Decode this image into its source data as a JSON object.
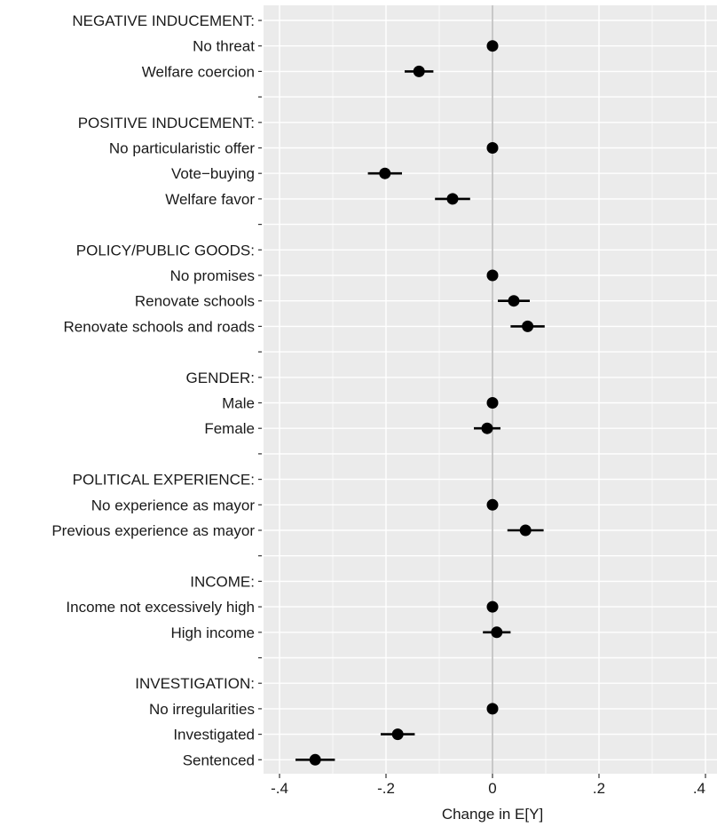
{
  "chart_data": {
    "type": "scatter",
    "subtype": "coefficient-plot",
    "title": "",
    "xlabel": "Change in E[Y]",
    "ylabel": "",
    "xlim": [
      -0.4,
      0.4
    ],
    "x_ticks": [
      -0.4,
      -0.2,
      0,
      0.2,
      0.4
    ],
    "x_tick_labels": [
      "-.4",
      "-.2",
      "0",
      ".2",
      ".4"
    ],
    "reference_line_x": 0,
    "grid": true,
    "legend": "none",
    "colors": {
      "panel": "#ebebeb",
      "grid": "#ffffff",
      "point": "#000000",
      "refline": "#bdbdbd"
    },
    "rows": [
      {
        "label": "NEGATIVE INDUCEMENT:",
        "header": true
      },
      {
        "label": "No threat",
        "estimate": 0.0,
        "lower": 0.0,
        "upper": 0.0
      },
      {
        "label": "Welfare coercion",
        "estimate": -0.138,
        "lower": -0.165,
        "upper": -0.111
      },
      {
        "label": "",
        "spacer": true
      },
      {
        "label": "POSITIVE INDUCEMENT:",
        "header": true
      },
      {
        "label": "No particularistic offer",
        "estimate": 0.0,
        "lower": 0.0,
        "upper": 0.0
      },
      {
        "label": "Vote−buying",
        "estimate": -0.202,
        "lower": -0.234,
        "upper": -0.17
      },
      {
        "label": "Welfare favor",
        "estimate": -0.075,
        "lower": -0.108,
        "upper": -0.042
      },
      {
        "label": "",
        "spacer": true
      },
      {
        "label": "POLICY/PUBLIC GOODS:",
        "header": true
      },
      {
        "label": "No promises",
        "estimate": 0.0,
        "lower": 0.0,
        "upper": 0.0
      },
      {
        "label": "Renovate schools",
        "estimate": 0.04,
        "lower": 0.01,
        "upper": 0.07
      },
      {
        "label": "Renovate schools and roads",
        "estimate": 0.066,
        "lower": 0.034,
        "upper": 0.098
      },
      {
        "label": "",
        "spacer": true
      },
      {
        "label": "GENDER:",
        "header": true
      },
      {
        "label": "Male",
        "estimate": 0.0,
        "lower": 0.0,
        "upper": 0.0
      },
      {
        "label": "Female",
        "estimate": -0.01,
        "lower": -0.035,
        "upper": 0.015
      },
      {
        "label": "",
        "spacer": true
      },
      {
        "label": "POLITICAL EXPERIENCE:",
        "header": true
      },
      {
        "label": "No experience as mayor",
        "estimate": 0.0,
        "lower": 0.0,
        "upper": 0.0
      },
      {
        "label": "Previous experience as mayor",
        "estimate": 0.062,
        "lower": 0.028,
        "upper": 0.096
      },
      {
        "label": "",
        "spacer": true
      },
      {
        "label": "INCOME:",
        "header": true
      },
      {
        "label": "Income not excessively high",
        "estimate": 0.0,
        "lower": 0.0,
        "upper": 0.0
      },
      {
        "label": "High income",
        "estimate": 0.008,
        "lower": -0.018,
        "upper": 0.034
      },
      {
        "label": "",
        "spacer": true
      },
      {
        "label": "INVESTIGATION:",
        "header": true
      },
      {
        "label": "No irregularities",
        "estimate": 0.0,
        "lower": 0.0,
        "upper": 0.0
      },
      {
        "label": "Investigated",
        "estimate": -0.178,
        "lower": -0.21,
        "upper": -0.146
      },
      {
        "label": "Sentenced",
        "estimate": -0.333,
        "lower": -0.37,
        "upper": -0.296
      }
    ]
  }
}
